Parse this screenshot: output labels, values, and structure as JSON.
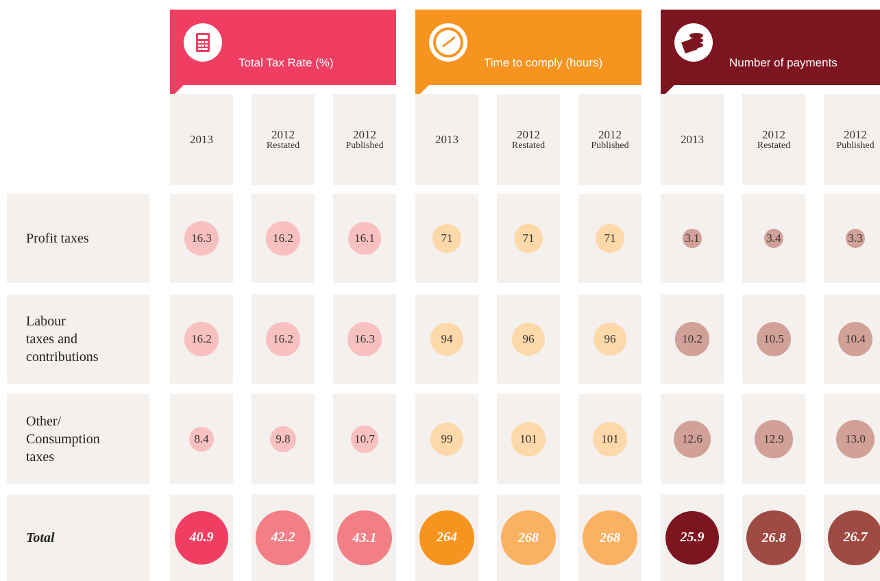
{
  "groups": [
    {
      "title": "Total Tax Rate (%)",
      "band_color": "#f03e62",
      "bubble_color": "#f9c0c0",
      "total_color": "#f03e62",
      "total_prior_color": "#f27f85",
      "columns": [
        {
          "year": "2013"
        },
        {
          "year": "2012",
          "note": "Restated"
        },
        {
          "year": "2012",
          "note": "Published"
        }
      ]
    },
    {
      "title": "Time to comply (hours)",
      "band_color": "#f79420",
      "bubble_color": "#fdd8a8",
      "total_color": "#f79420",
      "total_prior_color": "#fbb162",
      "columns": [
        {
          "year": "2013"
        },
        {
          "year": "2012",
          "note": "Restated"
        },
        {
          "year": "2012",
          "note": "Published"
        }
      ]
    },
    {
      "title": "Number of payments",
      "band_color": "#7d1520",
      "bubble_color": "#d1a096",
      "total_color": "#7d1520",
      "total_prior_color": "#a04a44",
      "columns": [
        {
          "year": "2013"
        },
        {
          "year": "2012",
          "note": "Restated"
        },
        {
          "year": "2012",
          "note": "Published"
        }
      ]
    }
  ],
  "rows": [
    {
      "label": [
        "Profit taxes"
      ],
      "values": [
        "16.3",
        "16.2",
        "16.1",
        "71",
        "71",
        "71",
        "3.1",
        "3.4",
        "3.3"
      ]
    },
    {
      "label": [
        "Labour",
        "taxes and",
        "contributions"
      ],
      "values": [
        "16.2",
        "16.2",
        "16.3",
        "94",
        "96",
        "96",
        "10.2",
        "10.5",
        "10.4"
      ]
    },
    {
      "label": [
        "Other/",
        "Consumption",
        "taxes"
      ],
      "values": [
        "8.4",
        "9.8",
        "10.7",
        "99",
        "101",
        "101",
        "12.6",
        "12.9",
        "13.0"
      ]
    },
    {
      "label": [
        "Total"
      ],
      "total": true,
      "values": [
        "40.9",
        "42.2",
        "43.1",
        "264",
        "268",
        "268",
        "25.9",
        "26.8",
        "26.7"
      ]
    }
  ]
}
